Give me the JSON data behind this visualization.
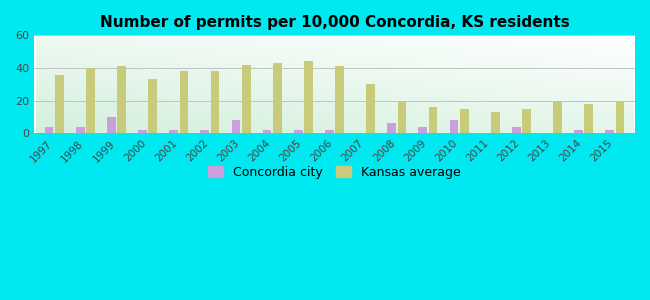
{
  "title": "Number of permits per 10,000 Concordia, KS residents",
  "years": [
    1997,
    1998,
    1999,
    2000,
    2001,
    2002,
    2003,
    2004,
    2005,
    2006,
    2007,
    2008,
    2009,
    2010,
    2011,
    2012,
    2013,
    2014,
    2015
  ],
  "concordia_city": [
    4,
    4,
    10,
    2,
    2,
    2,
    8,
    2,
    2,
    2,
    0,
    6,
    4,
    8,
    0,
    4,
    0,
    2,
    2
  ],
  "kansas_avg": [
    36,
    40,
    41,
    33,
    38,
    38,
    42,
    43,
    44,
    41,
    30,
    20,
    16,
    15,
    13,
    15,
    19,
    18,
    19
  ],
  "city_color": "#c9a0dc",
  "avg_color": "#c8cc7a",
  "bg_color_outer": "#00e8f0",
  "ylim": [
    0,
    60
  ],
  "yticks": [
    0,
    20,
    40,
    60
  ],
  "legend_city": "Concordia city",
  "legend_avg": "Kansas average",
  "bar_width": 0.28,
  "bar_gap": 0.05
}
